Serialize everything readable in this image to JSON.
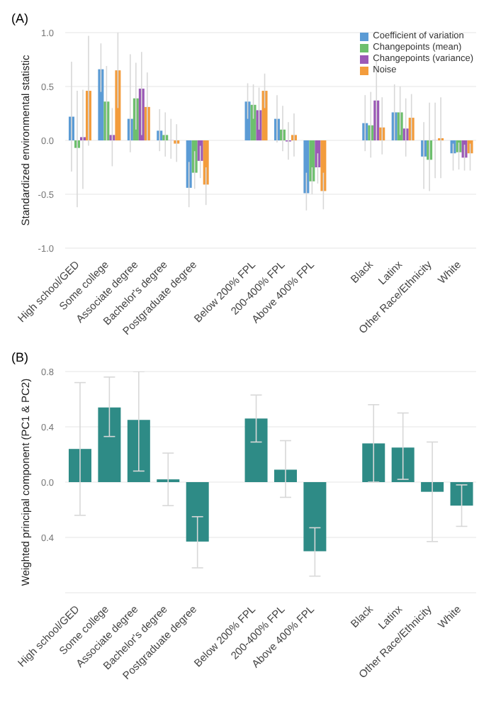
{
  "chart_data": [
    {
      "type": "bar",
      "title": "(A)",
      "ylabel": "Standardized environmental statistic",
      "categories": [
        "High school/GED",
        "Some college",
        "Associate degree",
        "Bachelor's degree",
        "Postgraduate degree",
        null,
        "Below 200% FPL",
        "200-400% FPL",
        "Above 400% FPL",
        null,
        "Black",
        "Latinx",
        "Other Race/Ethnicity",
        "White"
      ],
      "series": [
        {
          "name": "Coefficient of variation",
          "color": "#5b9bd5",
          "values": [
            0.22,
            0.66,
            0.2,
            0.09,
            -0.44,
            null,
            0.36,
            0.2,
            -0.49,
            null,
            0.16,
            0.26,
            -0.15,
            -0.12
          ],
          "errors": [
            [
              -0.29,
              0.73
            ],
            [
              0.45,
              0.9
            ],
            [
              -0.11,
              0.8
            ],
            [
              -0.1,
              0.29
            ],
            [
              -0.62,
              -0.2
            ],
            null,
            [
              0.2,
              0.53
            ],
            [
              -0.02,
              0.42
            ],
            [
              -0.65,
              -0.3
            ],
            null,
            [
              -0.1,
              0.42
            ],
            [
              0.0,
              0.52
            ],
            [
              -0.45,
              0.17
            ],
            [
              -0.28,
              -0.03
            ]
          ]
        },
        {
          "name": "Changepoints (mean)",
          "color": "#6dbf6d",
          "values": [
            -0.07,
            0.36,
            0.39,
            0.05,
            -0.3,
            null,
            0.33,
            0.1,
            -0.38,
            null,
            0.14,
            0.26,
            -0.18,
            -0.11
          ],
          "errors": [
            [
              -0.62,
              0.46
            ],
            [
              0.0,
              0.69
            ],
            [
              0.1,
              0.72
            ],
            [
              -0.15,
              0.26
            ],
            [
              -0.45,
              -0.1
            ],
            null,
            [
              0.2,
              0.52
            ],
            [
              -0.1,
              0.32
            ],
            [
              -0.5,
              -0.25
            ],
            null,
            [
              -0.16,
              0.45
            ],
            [
              0.05,
              0.5
            ],
            [
              -0.47,
              0.35
            ],
            [
              -0.27,
              -0.02
            ]
          ]
        },
        {
          "name": "Changepoints (variance)",
          "color": "#9b59b6",
          "values": [
            0.03,
            0.05,
            0.48,
            0,
            -0.19,
            null,
            0.28,
            -0.01,
            -0.25,
            null,
            0.37,
            0.11,
            0,
            -0.16
          ],
          "errors": [
            [
              -0.45,
              0.47
            ],
            [
              -0.24,
              0.3
            ],
            [
              0.05,
              0.82
            ],
            [
              -0.17,
              0.2
            ],
            [
              -0.35,
              -0.05
            ],
            null,
            [
              0.1,
              0.49
            ],
            [
              -0.18,
              0.17
            ],
            [
              -0.4,
              -0.12
            ],
            null,
            [
              0.0,
              0.73
            ],
            [
              -0.15,
              0.39
            ],
            [
              -0.35,
              0.35
            ],
            [
              -0.28,
              -0.04
            ]
          ]
        },
        {
          "name": "Noise",
          "color": "#f39c3c",
          "values": [
            0.46,
            0.65,
            0.31,
            -0.03,
            -0.41,
            null,
            0.46,
            0.05,
            -0.47,
            null,
            0.12,
            0.21,
            0.02,
            -0.12
          ],
          "errors": [
            [
              -0.05,
              0.97
            ],
            [
              0.3,
              1.0
            ],
            [
              0.0,
              0.63
            ],
            [
              -0.2,
              0.15
            ],
            [
              -0.6,
              -0.25
            ],
            null,
            [
              0.3,
              0.62
            ],
            [
              -0.15,
              0.25
            ],
            [
              -0.64,
              -0.3
            ],
            null,
            [
              -0.13,
              0.4
            ],
            [
              0.0,
              0.43
            ],
            [
              -0.35,
              0.4
            ],
            [
              -0.28,
              -0.03
            ]
          ]
        }
      ],
      "ylim": [
        -1,
        1
      ],
      "yticks": [
        {
          "value": -1,
          "label": "-1.0"
        },
        -0.5,
        {
          "value": 0,
          "label": "0.0"
        },
        0.5,
        {
          "value": 1,
          "label": "1.0"
        }
      ],
      "legend": "top right",
      "grid": "y"
    },
    {
      "type": "bar",
      "title": "(B)",
      "ylabel": "Weighted principal component (PC1 & PC2)",
      "categories": [
        "High school/GED",
        "Some college",
        "Associate degree",
        "Bachelor's degree",
        "Postgraduate degree",
        null,
        "Below 200% FPL",
        "200-400% FPL",
        "Above 400% FPL",
        null,
        "Black",
        "Latinx",
        "Other Race/Ethnicity",
        "White"
      ],
      "color": "#2e8b86",
      "values": [
        0.24,
        0.54,
        0.45,
        0.02,
        -0.43,
        null,
        0.46,
        0.09,
        -0.5,
        null,
        0.28,
        0.25,
        -0.07,
        -0.17
      ],
      "errors": [
        [
          -0.24,
          0.72
        ],
        [
          0.33,
          0.76
        ],
        [
          0.08,
          0.8
        ],
        [
          -0.17,
          0.21
        ],
        [
          -0.62,
          -0.25
        ],
        null,
        [
          0.29,
          0.63
        ],
        [
          -0.11,
          0.3
        ],
        [
          -0.68,
          -0.33
        ],
        null,
        [
          0.0,
          0.56
        ],
        [
          0.02,
          0.5
        ],
        [
          -0.43,
          0.29
        ],
        [
          -0.32,
          -0.02
        ]
      ],
      "ylim": [
        -0.8,
        0.8
      ],
      "yticks": [
        {
          "value": -0.8,
          "label": null
        },
        {
          "value": -0.4,
          "label": "0.4"
        },
        {
          "value": 0,
          "label": "0.0"
        },
        0.4,
        0.8
      ],
      "grid": "y"
    }
  ]
}
